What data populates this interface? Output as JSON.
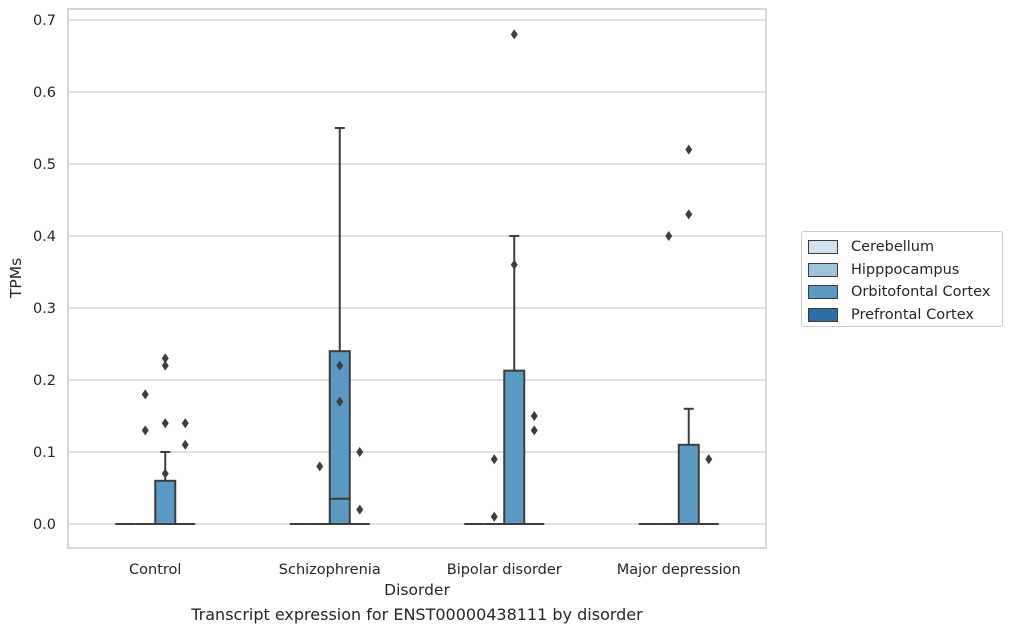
{
  "chart_data": {
    "type": "box",
    "caption": "Transcript expression for ENST00000438111 by disorder",
    "xlabel": "Disorder",
    "ylabel": "TPMs",
    "ylim": [
      -0.033,
      0.715
    ],
    "yticks": [
      0.0,
      0.1,
      0.2,
      0.3,
      0.4,
      0.5,
      0.6,
      0.7
    ],
    "ytick_labels": [
      "0.0",
      "0.1",
      "0.2",
      "0.3",
      "0.4",
      "0.5",
      "0.6",
      "0.7"
    ],
    "grid": true,
    "legend_position": "right",
    "categories": [
      "Control",
      "Schizophrenia",
      "Bipolar disorder",
      "Major depression"
    ],
    "series": [
      {
        "name": "Cerebellum",
        "color": "#d0e1f2",
        "boxes": [
          {
            "q1": 0,
            "median": 0,
            "q3": 0,
            "whisker_low": 0,
            "whisker_high": 0,
            "outliers": []
          },
          {
            "q1": 0,
            "median": 0,
            "q3": 0,
            "whisker_low": 0,
            "whisker_high": 0,
            "outliers": []
          },
          {
            "q1": 0,
            "median": 0,
            "q3": 0,
            "whisker_low": 0,
            "whisker_high": 0,
            "outliers": []
          },
          {
            "q1": 0,
            "median": 0,
            "q3": 0,
            "whisker_low": 0,
            "whisker_high": 0,
            "outliers": []
          }
        ]
      },
      {
        "name": "Hipppocampus",
        "color": "#9dc3dd",
        "boxes": [
          {
            "q1": 0,
            "median": 0,
            "q3": 0,
            "whisker_low": 0,
            "whisker_high": 0,
            "outliers": [
              0.13,
              0.18
            ]
          },
          {
            "q1": 0,
            "median": 0,
            "q3": 0,
            "whisker_low": 0,
            "whisker_high": 0,
            "outliers": [
              0.08
            ]
          },
          {
            "q1": 0,
            "median": 0,
            "q3": 0,
            "whisker_low": 0,
            "whisker_high": 0,
            "outliers": [
              0.01,
              0.09
            ]
          },
          {
            "q1": 0,
            "median": 0,
            "q3": 0,
            "whisker_low": 0,
            "whisker_high": 0,
            "outliers": [
              0.4
            ]
          }
        ]
      },
      {
        "name": "Orbitofontal Cortex",
        "color": "#5b9ac4",
        "boxes": [
          {
            "q1": 0,
            "median": 0,
            "q3": 0.06,
            "whisker_low": 0,
            "whisker_high": 0.1,
            "outliers": [
              0.07,
              0.14,
              0.22,
              0.23
            ]
          },
          {
            "q1": 0,
            "median": 0.035,
            "q3": 0.24,
            "whisker_low": 0,
            "whisker_high": 0.55,
            "outliers": [
              0.17,
              0.22
            ]
          },
          {
            "q1": 0,
            "median": 0,
            "q3": 0.213,
            "whisker_low": 0,
            "whisker_high": 0.4,
            "outliers": [
              0.36,
              0.68
            ]
          },
          {
            "q1": 0,
            "median": 0,
            "q3": 0.11,
            "whisker_low": 0,
            "whisker_high": 0.16,
            "outliers": [
              0.43,
              0.52
            ]
          }
        ]
      },
      {
        "name": "Prefrontal Cortex",
        "color": "#2e6ea6",
        "boxes": [
          {
            "q1": 0,
            "median": 0,
            "q3": 0,
            "whisker_low": 0,
            "whisker_high": 0,
            "outliers": [
              0.11,
              0.14
            ]
          },
          {
            "q1": 0,
            "median": 0,
            "q3": 0,
            "whisker_low": 0,
            "whisker_high": 0,
            "outliers": [
              0.02,
              0.1
            ]
          },
          {
            "q1": 0,
            "median": 0,
            "q3": 0,
            "whisker_low": 0,
            "whisker_high": 0,
            "outliers": [
              0.13,
              0.15
            ]
          },
          {
            "q1": 0,
            "median": 0,
            "q3": 0,
            "whisker_low": 0,
            "whisker_high": 0,
            "outliers": [
              0.09
            ]
          }
        ]
      }
    ]
  }
}
